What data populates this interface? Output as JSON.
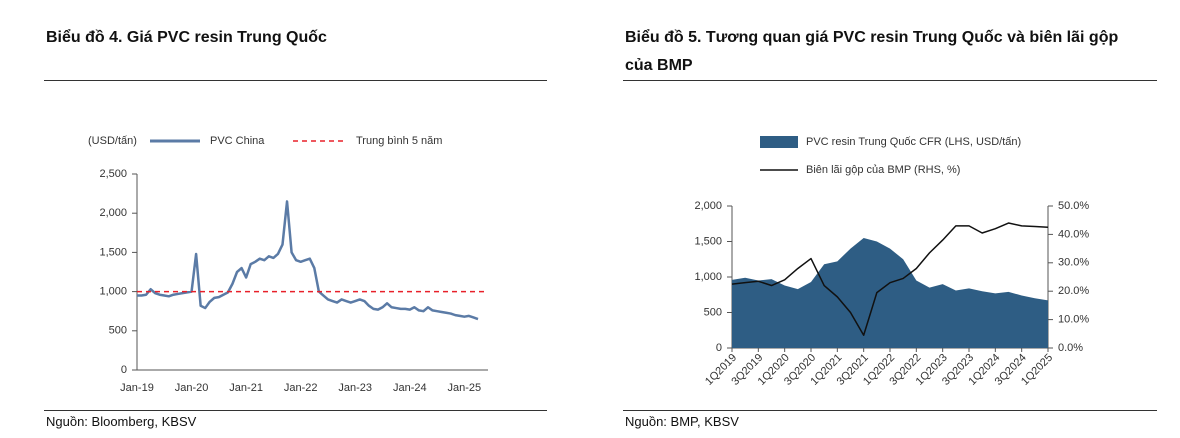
{
  "chart_data": [
    {
      "type": "line",
      "title": "Biểu đồ 4. Giá PVC resin Trung Quốc",
      "source": "Nguồn: Bloomberg, KBSV",
      "y_label": "(USD/tấn)",
      "categories": [
        "Jan-19",
        null,
        null,
        null,
        null,
        null,
        null,
        null,
        null,
        null,
        null,
        null,
        "Jan-20",
        null,
        null,
        null,
        null,
        null,
        null,
        null,
        null,
        null,
        null,
        null,
        "Jan-21",
        null,
        null,
        null,
        null,
        null,
        null,
        null,
        null,
        null,
        null,
        null,
        "Jan-22",
        null,
        null,
        null,
        null,
        null,
        null,
        null,
        null,
        null,
        null,
        null,
        "Jan-23",
        null,
        null,
        null,
        null,
        null,
        null,
        null,
        null,
        null,
        null,
        null,
        "Jan-24",
        null,
        null,
        null,
        null,
        null,
        null,
        null,
        null,
        null,
        null,
        null,
        "Jan-25",
        null,
        null,
        null
      ],
      "series": [
        {
          "name": "PVC China",
          "color": "#5b7ba6",
          "values": [
            950,
            950,
            960,
            1030,
            980,
            960,
            950,
            940,
            960,
            970,
            980,
            990,
            1000,
            1480,
            820,
            790,
            870,
            920,
            930,
            960,
            990,
            1100,
            1250,
            1300,
            1180,
            1350,
            1380,
            1420,
            1400,
            1450,
            1430,
            1480,
            1600,
            2150,
            1500,
            1400,
            1380,
            1400,
            1420,
            1300,
            1000,
            950,
            900,
            880,
            860,
            900,
            880,
            860,
            880,
            900,
            880,
            820,
            780,
            770,
            800,
            850,
            800,
            790,
            780,
            780,
            770,
            800,
            760,
            750,
            800,
            760,
            750,
            740,
            730,
            720,
            700,
            690,
            680,
            690,
            670,
            650
          ]
        }
      ],
      "hlines": [
        {
          "name": "Trung bình 5 năm",
          "color": "#e8202a",
          "value": 1000
        }
      ],
      "ylim": [
        0,
        2500
      ],
      "yticks": [
        0,
        500,
        {
          "value": 1000,
          "label": "1,000"
        },
        {
          "value": 1500,
          "label": "1,500"
        },
        {
          "value": 2000,
          "label": "2,000"
        },
        {
          "value": 2500,
          "label": "2,500"
        }
      ]
    },
    {
      "type": "combo",
      "title": "Biểu đồ 5. Tương quan giá PVC resin Trung Quốc và biên lãi gộp của BMP",
      "source": "Nguồn: BMP, KBSV",
      "categories": [
        "1Q2019",
        null,
        "3Q2019",
        null,
        "1Q2020",
        null,
        "3Q2020",
        null,
        "1Q2021",
        null,
        "3Q2021",
        null,
        "1Q2022",
        null,
        "3Q2022",
        null,
        "1Q2023",
        null,
        "3Q2023",
        null,
        "1Q2024",
        null,
        "3Q2024",
        null,
        "1Q2025"
      ],
      "series": [
        {
          "name": "PVC resin Trung Quốc CFR (LHS, USD/tấn)",
          "type": "area",
          "color": "#2e5d84",
          "values": [
            960,
            990,
            950,
            970,
            880,
            830,
            930,
            1180,
            1220,
            1400,
            1550,
            1500,
            1400,
            1250,
            950,
            850,
            900,
            810,
            840,
            800,
            770,
            790,
            740,
            700,
            670
          ]
        },
        {
          "name": "Biên lãi gộp của BMP (RHS, %)",
          "type": "line",
          "color": "#111111",
          "axis": "y2",
          "values": [
            22.5,
            23,
            23.5,
            22,
            24,
            28,
            31.5,
            22,
            18,
            12.5,
            4.5,
            19.5,
            23,
            24.5,
            28,
            33.5,
            38,
            43,
            43,
            40.5,
            42,
            44,
            43,
            42.8,
            42.5
          ]
        }
      ],
      "ylim": [
        0,
        2000
      ],
      "yticks": [
        0,
        500,
        {
          "value": 1000,
          "label": "1,000"
        },
        {
          "value": 1500,
          "label": "1,500"
        },
        {
          "value": 2000,
          "label": "2,000"
        }
      ],
      "y2lim": [
        0,
        50
      ],
      "y2ticks": [
        {
          "value": 0,
          "label": "0.0%"
        },
        {
          "value": 10,
          "label": "10.0%"
        },
        {
          "value": 20,
          "label": "20.0%"
        },
        {
          "value": 30,
          "label": "30.0%"
        },
        {
          "value": 40,
          "label": "40.0%"
        },
        {
          "value": 50,
          "label": "50.0%"
        }
      ]
    }
  ]
}
